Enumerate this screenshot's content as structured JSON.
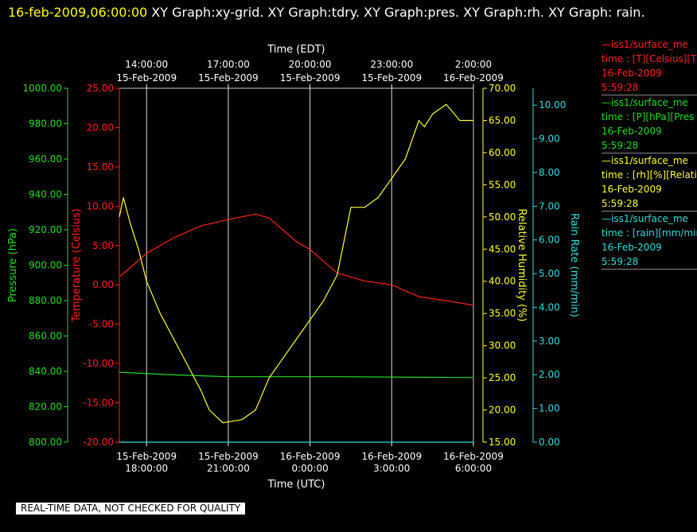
{
  "title": {
    "timestamp": "16-feb-2009,06:00:00",
    "text": " XY Graph:xy-grid.  XY Graph:tdry.  XY Graph:pres.  XY Graph:rh.  XY Graph: rain."
  },
  "legend": [
    {
      "line1": "—iss1/surface_me",
      "line2": "time : [T][Celsius][T",
      "line3": "16-Feb-2009",
      "line4": "5:59:28",
      "color": "#ff2020"
    },
    {
      "line1": "—iss1/surface_me",
      "line2": "time : [P][hPa][Pres",
      "line3": "16-Feb-2009",
      "line4": "5:59:28",
      "color": "#22dd22"
    },
    {
      "line1": "—iss1/surface_me",
      "line2": "time : [rh][%][Relati",
      "line3": "16-Feb-2009",
      "line4": "5:59:28",
      "color": "#ffff33"
    },
    {
      "line1": "—iss1/surface_me",
      "line2": "time : [rain][mm/min",
      "line3": "16-Feb-2009",
      "line4": "5:59:28",
      "color": "#33dddd"
    }
  ],
  "quality_note": "REAL-TIME DATA, NOT CHECKED FOR QUALITY",
  "chart_data": {
    "type": "line",
    "grid": true,
    "x_range": [
      "2009-02-15 17:00:00 UTC",
      "2009-02-16 06:00:00 UTC"
    ],
    "x_top_label": "Time (EDT)",
    "x_bottom_label": "Time (UTC)",
    "x_top_ticks": [
      {
        "t1": "14:00:00",
        "t2": "15-Feb-2009"
      },
      {
        "t1": "17:00:00",
        "t2": "15-Feb-2009"
      },
      {
        "t1": "20:00:00",
        "t2": "15-Feb-2009"
      },
      {
        "t1": "23:00:00",
        "t2": "15-Feb-2009"
      },
      {
        "t1": "2:00:00",
        "t2": "16-Feb-2009"
      }
    ],
    "x_bottom_ticks": [
      {
        "t1": "15-Feb-2009",
        "t2": "18:00:00"
      },
      {
        "t1": "15-Feb-2009",
        "t2": "21:00:00"
      },
      {
        "t1": "16-Feb-2009",
        "t2": "0:00:00"
      },
      {
        "t1": "16-Feb-2009",
        "t2": "3:00:00"
      },
      {
        "t1": "16-Feb-2009",
        "t2": "6:00:00"
      }
    ],
    "x_tick_hours": [
      1,
      4,
      7,
      10,
      13
    ],
    "axes": [
      {
        "id": "pres",
        "label": "Pressure (hPa)",
        "color": "#22dd22",
        "range": [
          800,
          1000
        ],
        "ticks": [
          "800.00",
          "820.00",
          "840.00",
          "860.00",
          "880.00",
          "900.00",
          "920.00",
          "940.00",
          "960.00",
          "980.00",
          "1000.00"
        ]
      },
      {
        "id": "tdry",
        "label": "Temperature (Celsius)",
        "color": "#ff2020",
        "range": [
          -20,
          25
        ],
        "ticks": [
          "-20.00",
          "-15.00",
          "-10.00",
          "-5.00",
          "0.00",
          "5.00",
          "10.00",
          "15.00",
          "20.00",
          "25.00"
        ]
      },
      {
        "id": "rh",
        "label": "Relative Humidity (%)",
        "color": "#ffff33",
        "range": [
          15,
          70
        ],
        "ticks": [
          "15.00",
          "20.00",
          "25.00",
          "30.00",
          "35.00",
          "40.00",
          "45.00",
          "50.00",
          "55.00",
          "60.00",
          "65.00",
          "70.00"
        ]
      },
      {
        "id": "rain",
        "label": "Rain Rate (mm/min)",
        "color": "#33dddd",
        "range": [
          0,
          10.5
        ],
        "ticks": [
          "0.00",
          "1.00",
          "2.00",
          "3.00",
          "4.00",
          "5.00",
          "6.00",
          "7.00",
          "8.00",
          "9.00",
          "10.00"
        ]
      }
    ],
    "series": [
      {
        "name": "tdry",
        "axis": "tdry",
        "color": "#ff2020",
        "x_hours": [
          0,
          0.5,
          1,
          2,
          3,
          4,
          5,
          5.5,
          6,
          6.5,
          7,
          8,
          9,
          10,
          11,
          12,
          13
        ],
        "values": [
          1.0,
          2.5,
          4.0,
          6.0,
          7.5,
          8.3,
          9.0,
          8.5,
          7.0,
          5.5,
          4.5,
          1.5,
          0.5,
          0.0,
          -1.5,
          -2.0,
          -2.6
        ]
      },
      {
        "name": "pres",
        "axis": "pres",
        "color": "#22dd22",
        "x_hours": [
          0,
          2,
          4,
          8,
          13
        ],
        "values": [
          839.5,
          838.0,
          837.0,
          837.0,
          836.5
        ]
      },
      {
        "name": "rh",
        "axis": "rh",
        "color": "#ffff33",
        "x_hours": [
          0,
          0.15,
          0.4,
          0.7,
          1.0,
          1.5,
          2.0,
          2.5,
          3.0,
          3.3,
          3.8,
          4.5,
          5.0,
          5.5,
          6.0,
          6.5,
          7.0,
          7.5,
          8.0,
          8.5,
          8.8,
          9.0,
          9.5,
          10.0,
          10.5,
          11.0,
          11.2,
          11.5,
          12.0,
          12.5,
          13.0
        ],
        "values": [
          50,
          53,
          49,
          45,
          40,
          35,
          31,
          27,
          23,
          20,
          18,
          18.5,
          20,
          25,
          28,
          31,
          34,
          37,
          41,
          51.5,
          51.5,
          51.5,
          53,
          56,
          59,
          65,
          64,
          66,
          67.5,
          65,
          65
        ]
      },
      {
        "name": "rain",
        "axis": "rain",
        "color": "#33dddd",
        "x_hours": [
          0,
          13
        ],
        "values": [
          0,
          0
        ]
      }
    ]
  }
}
